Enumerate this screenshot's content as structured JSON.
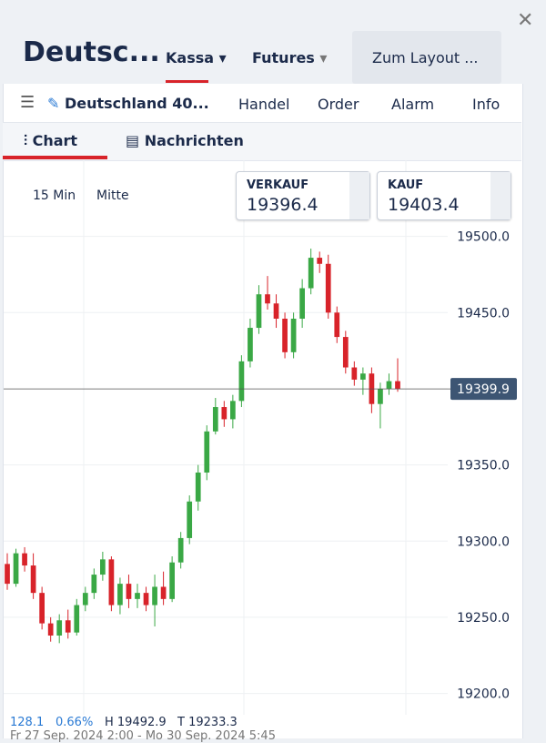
{
  "header": {
    "title": "Deutsc...",
    "tabs": [
      "Kassa",
      "Futures"
    ],
    "layout_button": "Zum Layout ..."
  },
  "toolbar": {
    "instrument": "Deutschland 40...",
    "items": [
      "Handel",
      "Order",
      "Alarm",
      "Info"
    ]
  },
  "view_tabs": [
    "Chart",
    "Nachrichten"
  ],
  "controls": [
    "15 Min",
    "Mitte"
  ],
  "quotes": [
    {
      "label": "VERKAUF",
      "price": "19396.4"
    },
    {
      "label": "KAUF",
      "price": "19403.4"
    }
  ],
  "stats": [
    "128.1",
    "0.66%",
    "H 19492.9",
    "T 19233.3"
  ],
  "range_text": "Fr 27 Sep. 2024 2:00 - Mo 30 Sep. 2024 5:45",
  "chart_data": {
    "type": "candlestick",
    "up_color": "#3aa845",
    "down_color": "#d8232a",
    "ylim": [
      19186,
      19550
    ],
    "yticks": [
      {
        "value": 19200,
        "label": "19200.0"
      },
      {
        "value": 19250,
        "label": "19250.0"
      },
      {
        "value": 19300,
        "label": "19300.0"
      },
      {
        "value": 19350,
        "label": "19350.0"
      },
      {
        "value": 19400,
        "label": "19400.0"
      },
      {
        "value": 19450,
        "label": "19450.0"
      },
      {
        "value": 19500,
        "label": "19500.0"
      }
    ],
    "current_price": 19399.9,
    "open": [
      19285,
      19272,
      19292,
      19284,
      19266,
      19246,
      19238,
      19248,
      19240,
      19258,
      19266,
      19278,
      19288,
      19258,
      19272,
      19262,
      19266,
      19258,
      19270,
      19262,
      19286,
      19302,
      19326,
      19345,
      19372,
      19388,
      19380,
      19392,
      19418,
      19440,
      19462,
      19456,
      19446,
      19424,
      19446,
      19466,
      19486,
      19482,
      19450,
      19434,
      19414,
      19406,
      19410,
      19390,
      19400,
      19405
    ],
    "high": [
      19292,
      19295,
      19296,
      19292,
      19270,
      19250,
      19252,
      19255,
      19262,
      19270,
      19282,
      19293,
      19290,
      19276,
      19278,
      19272,
      19270,
      19278,
      19280,
      19290,
      19306,
      19330,
      19350,
      19376,
      19394,
      19392,
      19396,
      19422,
      19446,
      19468,
      19474,
      19462,
      19450,
      19450,
      19472,
      19492,
      19490,
      19488,
      19454,
      19438,
      19418,
      19414,
      19414,
      19404,
      19410,
      19420
    ],
    "low": [
      19268,
      19270,
      19280,
      19262,
      19242,
      19234,
      19233,
      19236,
      19238,
      19254,
      19262,
      19274,
      19254,
      19252,
      19256,
      19256,
      19254,
      19244,
      19258,
      19260,
      19282,
      19298,
      19320,
      19340,
      19370,
      19375,
      19374,
      19388,
      19414,
      19436,
      19452,
      19440,
      19420,
      19420,
      19440,
      19462,
      19476,
      19446,
      19430,
      19410,
      19402,
      19396,
      19384,
      19374,
      19396,
      19398
    ],
    "close": [
      19272,
      19292,
      19284,
      19266,
      19246,
      19238,
      19248,
      19240,
      19258,
      19266,
      19278,
      19288,
      19258,
      19272,
      19262,
      19266,
      19258,
      19270,
      19262,
      19286,
      19302,
      19326,
      19345,
      19372,
      19388,
      19380,
      19392,
      19418,
      19440,
      19462,
      19456,
      19446,
      19424,
      19446,
      19466,
      19486,
      19482,
      19450,
      19434,
      19414,
      19406,
      19410,
      19390,
      19400,
      19405,
      19400
    ]
  }
}
